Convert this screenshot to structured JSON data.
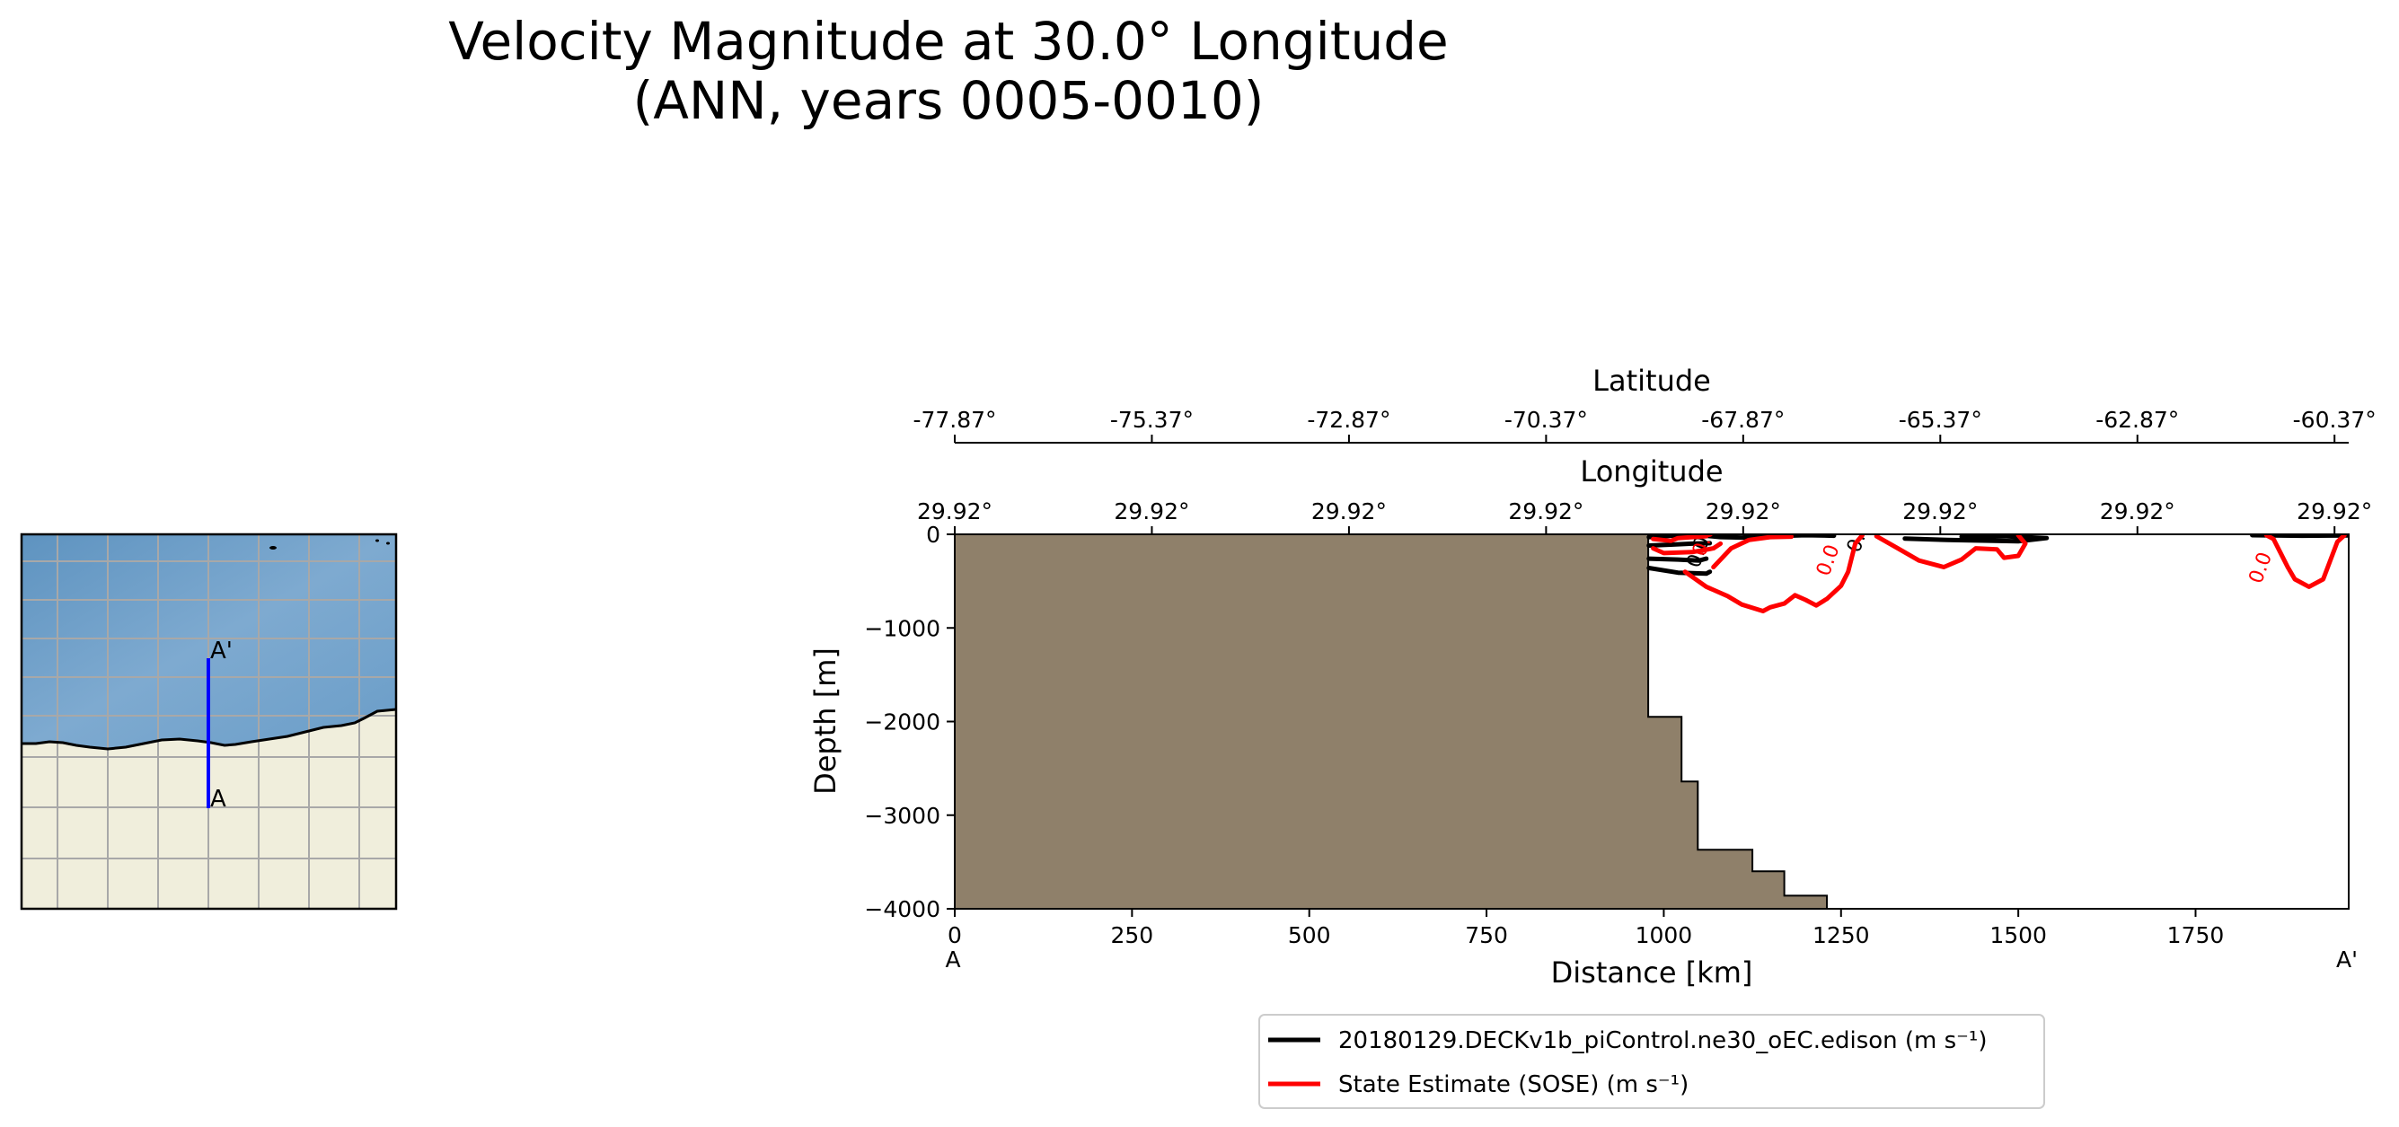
{
  "figure": {
    "title_line1": "Velocity Magnitude at 30.0° Longitude",
    "title_line2": "(ANN, years 0005-0010)"
  },
  "colors": {
    "land": "#f0eedc",
    "ocean": "#6fa0c8",
    "grid": "#a8a8a8",
    "transect": "#0000ff",
    "seafloor": "#8f806a",
    "model_contour": "#000000",
    "obs_contour": "#ff0000"
  },
  "map": {
    "start_label": "A",
    "end_label": "A'"
  },
  "chart_data": {
    "type": "line",
    "xlabel": "Distance [km]",
    "ylabel": "Depth [m]",
    "xlim": [
      0,
      1966
    ],
    "ylim": [
      -4000,
      0
    ],
    "x_ticks": [
      0,
      250,
      500,
      750,
      1000,
      1250,
      1500,
      1750
    ],
    "y_ticks": [
      0,
      -1000,
      -2000,
      -3000,
      -4000
    ],
    "x_tick_labels": [
      "0",
      "250",
      "500",
      "750",
      "1000",
      "1250",
      "1500",
      "1750"
    ],
    "y_tick_labels": [
      "0",
      "−1000",
      "−2000",
      "−3000",
      "−4000"
    ],
    "start_label": "A",
    "end_label": "A'",
    "latitude_axis": {
      "label": "Latitude",
      "tick_positions_km": [
        0,
        278,
        556,
        834,
        1112,
        1390,
        1668,
        1946
      ],
      "tick_labels": [
        "-77.87°",
        "-75.37°",
        "-72.87°",
        "-70.37°",
        "-67.87°",
        "-65.37°",
        "-62.87°",
        "-60.37°"
      ]
    },
    "longitude_axis": {
      "label": "Longitude",
      "tick_positions_km": [
        0,
        278,
        556,
        834,
        1112,
        1390,
        1668,
        1946
      ],
      "tick_labels": [
        "29.92°",
        "29.92°",
        "29.92°",
        "29.92°",
        "29.92°",
        "29.92°",
        "29.92°",
        "29.92°"
      ]
    },
    "bathymetry": {
      "name": "seafloor",
      "points": [
        [
          0,
          0
        ],
        [
          978,
          0
        ],
        [
          978,
          -1950
        ],
        [
          1025,
          -1950
        ],
        [
          1025,
          -2640
        ],
        [
          1048,
          -2640
        ],
        [
          1048,
          -3370
        ],
        [
          1125,
          -3370
        ],
        [
          1125,
          -3600
        ],
        [
          1170,
          -3600
        ],
        [
          1170,
          -3860
        ],
        [
          1230,
          -3860
        ],
        [
          1230,
          -4000
        ],
        [
          0,
          -4000
        ]
      ]
    },
    "series": [
      {
        "name": "20180129.DECKv1b_piControl.ne30_oEC.edison (m s⁻¹)",
        "color": "#000000",
        "segments": [
          [
            [
              979,
              -30
            ],
            [
              1000,
              -20
            ],
            [
              1030,
              -5
            ],
            [
              1060,
              -15
            ],
            [
              1080,
              -30
            ],
            [
              1110,
              -35
            ],
            [
              1150,
              -20
            ],
            [
              1200,
              -10
            ],
            [
              1240,
              -15
            ]
          ],
          [
            [
              979,
              -120
            ],
            [
              1010,
              -110
            ],
            [
              1040,
              -100
            ],
            [
              1065,
              -95
            ]
          ],
          [
            [
              979,
              -260
            ],
            [
              1020,
              -270
            ],
            [
              1050,
              -280
            ],
            [
              1060,
              -260
            ]
          ],
          [
            [
              979,
              -360
            ],
            [
              1020,
              -410
            ],
            [
              1060,
              -420
            ],
            [
              1065,
              -400
            ]
          ],
          [
            [
              1340,
              -45
            ],
            [
              1400,
              -60
            ],
            [
              1500,
              -75
            ],
            [
              1540,
              -40
            ],
            [
              1480,
              -20
            ],
            [
              1420,
              -25
            ]
          ],
          [
            [
              1830,
              -10
            ],
            [
              1900,
              -15
            ],
            [
              1966,
              -12
            ]
          ]
        ],
        "contour_labels": [
          {
            "x": 1060,
            "y": -150,
            "text": "0.01"
          },
          {
            "x": 1283,
            "y": -50,
            "text": "0.0"
          }
        ]
      },
      {
        "name": "State Estimate (SOSE) (m s⁻¹)",
        "color": "#ff0000",
        "segments": [
          [
            [
              985,
              -50
            ],
            [
              1010,
              -70
            ],
            [
              1020,
              -40
            ],
            [
              1040,
              -30
            ],
            [
              1060,
              -20
            ]
          ],
          [
            [
              985,
              -150
            ],
            [
              1000,
              -200
            ],
            [
              1040,
              -190
            ],
            [
              1070,
              -150
            ],
            [
              1080,
              -100
            ]
          ],
          [
            [
              1070,
              -350
            ],
            [
              1095,
              -150
            ],
            [
              1120,
              -60
            ],
            [
              1150,
              -30
            ],
            [
              1180,
              -25
            ]
          ],
          [
            [
              1030,
              -400
            ],
            [
              1060,
              -560
            ],
            [
              1090,
              -660
            ],
            [
              1110,
              -750
            ],
            [
              1140,
              -820
            ],
            [
              1150,
              -780
            ],
            [
              1170,
              -740
            ],
            [
              1185,
              -650
            ],
            [
              1200,
              -700
            ],
            [
              1215,
              -760
            ],
            [
              1230,
              -690
            ],
            [
              1250,
              -550
            ],
            [
              1260,
              -400
            ],
            [
              1270,
              -100
            ],
            [
              1280,
              -10
            ]
          ],
          [
            [
              1300,
              -20
            ],
            [
              1330,
              -150
            ],
            [
              1360,
              -280
            ],
            [
              1395,
              -350
            ],
            [
              1420,
              -270
            ],
            [
              1440,
              -150
            ],
            [
              1470,
              -160
            ],
            [
              1480,
              -250
            ],
            [
              1500,
              -230
            ],
            [
              1510,
              -100
            ],
            [
              1500,
              -10
            ]
          ],
          [
            [
              1850,
              -10
            ],
            [
              1860,
              -50
            ],
            [
              1880,
              -350
            ],
            [
              1890,
              -480
            ],
            [
              1910,
              -560
            ],
            [
              1930,
              -480
            ],
            [
              1950,
              -80
            ],
            [
              1960,
              -10
            ]
          ]
        ],
        "contour_labels": [
          {
            "x": 1240,
            "y": -300,
            "text": "0.0"
          },
          {
            "x": 1850,
            "y": -380,
            "text": "0.0"
          },
          {
            "x": 1065,
            "y": -90,
            "text": "0.0"
          }
        ]
      }
    ],
    "legend_placement": "lower-center"
  }
}
